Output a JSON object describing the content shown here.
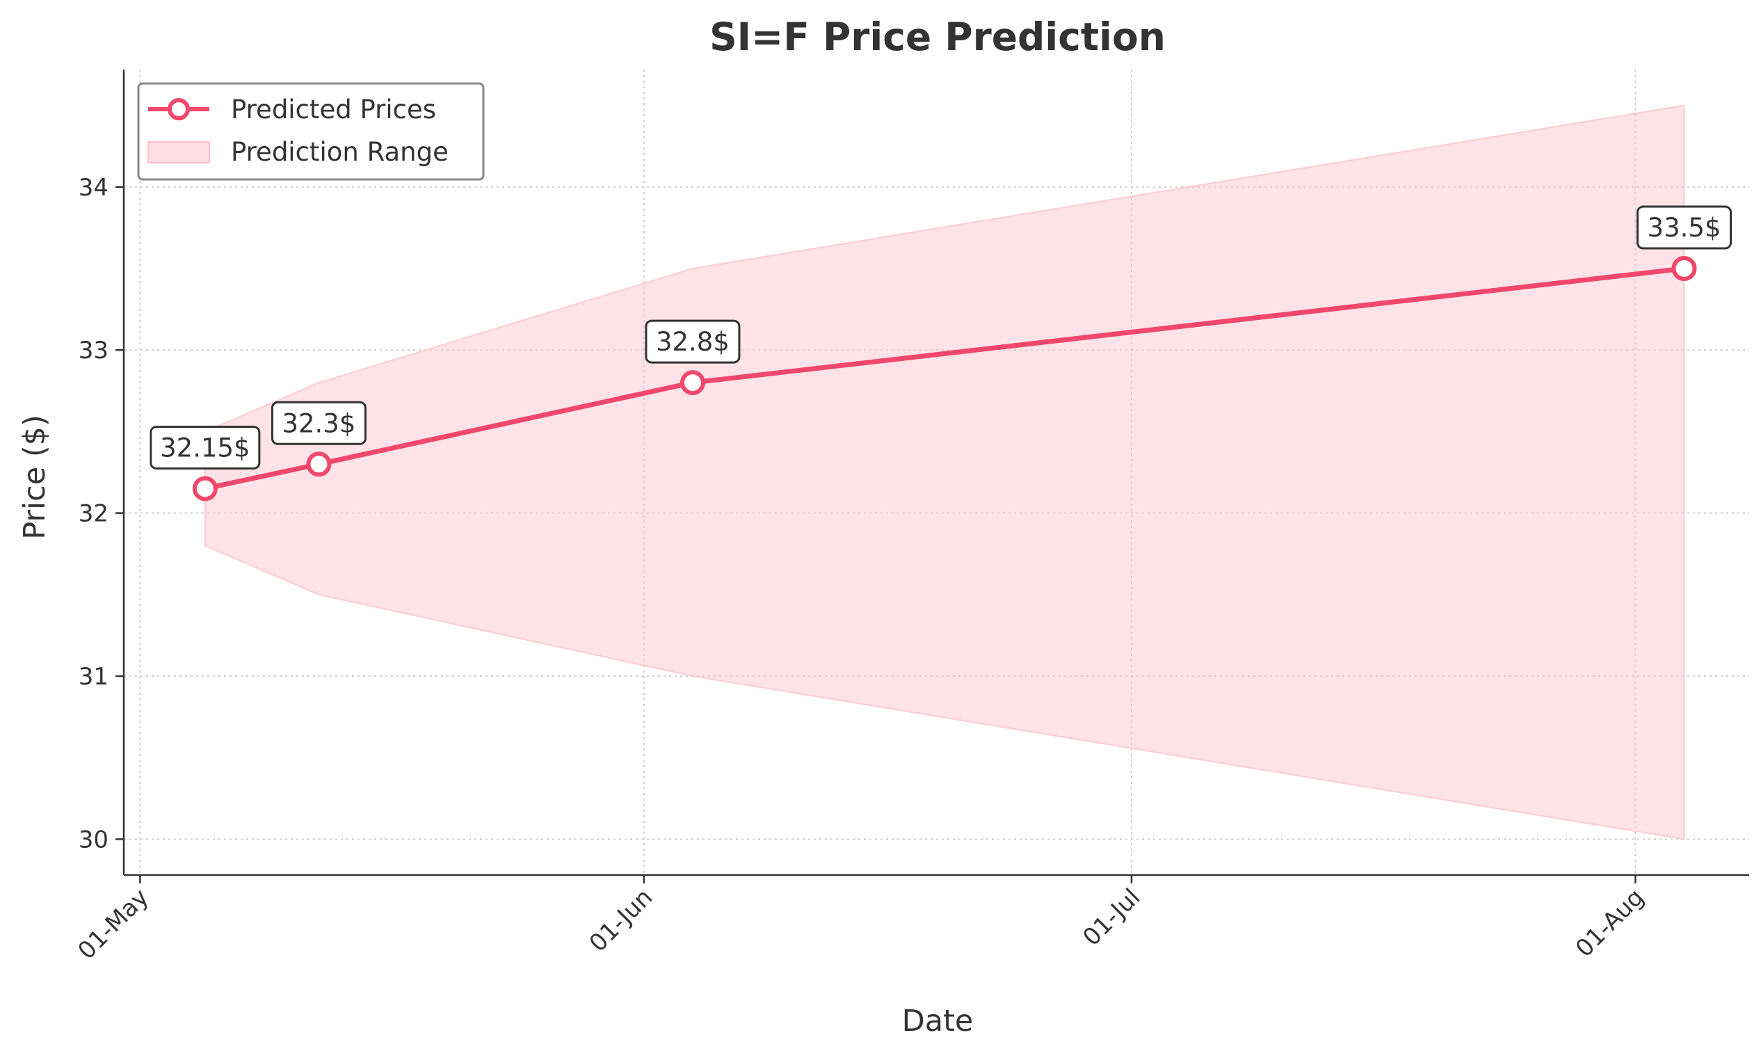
{
  "chart_data": {
    "type": "line",
    "title": "SI=F Price Prediction",
    "xlabel": "Date",
    "ylabel": "Price ($)",
    "x_ticks": [
      {
        "date": "2024-05-01",
        "label": "01-May"
      },
      {
        "date": "2024-06-01",
        "label": "01-Jun"
      },
      {
        "date": "2024-07-01",
        "label": "01-Jul"
      },
      {
        "date": "2024-08-01",
        "label": "01-Aug"
      }
    ],
    "y_ticks": [
      30,
      31,
      32,
      33,
      34
    ],
    "xlim": [
      "2024-04-30",
      "2024-08-08"
    ],
    "ylim": [
      29.78,
      34.72
    ],
    "grid": true,
    "legend_position": "top-left",
    "series": [
      {
        "name": "Predicted Prices",
        "color": "#f0476a",
        "x": [
          "2024-05-05",
          "2024-05-12",
          "2024-06-04",
          "2024-08-04"
        ],
        "values": [
          32.15,
          32.3,
          32.8,
          33.5
        ],
        "labels": [
          "32.15$",
          "32.3$",
          "32.8$",
          "33.5$"
        ]
      }
    ],
    "range": {
      "name": "Prediction Range",
      "color": "#ffc0cb",
      "x": [
        "2024-05-05",
        "2024-05-12",
        "2024-06-04",
        "2024-08-04"
      ],
      "lower": [
        31.8,
        31.5,
        31.0,
        30.0
      ],
      "upper": [
        32.5,
        32.8,
        33.5,
        34.5
      ]
    }
  }
}
